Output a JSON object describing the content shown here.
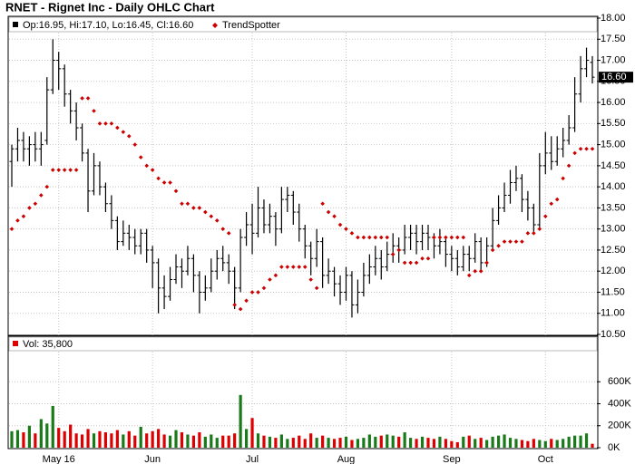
{
  "chart_data": [
    {
      "type": "ohlc",
      "title": "RNET - Rignet Inc - Daily OHLC Chart",
      "legend_label": "Op:16.95, Hi:17.10, Lo:16.45, Cl:16.60",
      "last_price_label": "16.60",
      "color": "#000000",
      "grid": true,
      "categories": [
        null,
        null,
        null,
        null,
        null,
        null,
        null,
        null,
        "May 16",
        null,
        null,
        null,
        null,
        null,
        null,
        null,
        null,
        null,
        null,
        null,
        null,
        null,
        null,
        null,
        "Jun",
        null,
        null,
        null,
        null,
        null,
        null,
        null,
        null,
        null,
        null,
        null,
        null,
        null,
        null,
        null,
        null,
        "Jul",
        null,
        null,
        null,
        null,
        null,
        null,
        null,
        null,
        null,
        null,
        null,
        null,
        null,
        null,
        null,
        "Aug",
        null,
        null,
        null,
        null,
        null,
        null,
        null,
        null,
        null,
        null,
        null,
        null,
        null,
        null,
        null,
        null,
        null,
        "Sep",
        null,
        null,
        null,
        null,
        null,
        null,
        null,
        null,
        null,
        null,
        null,
        null,
        null,
        null,
        null,
        "Oct",
        null,
        null,
        null,
        null,
        null,
        null,
        null,
        null
      ],
      "open": [
        14.6,
        14.9,
        15.1,
        14.9,
        15.0,
        14.9,
        15.1,
        16.3,
        17.0,
        16.8,
        16.2,
        15.8,
        15.4,
        14.8,
        13.9,
        14.5,
        14.0,
        13.6,
        13.2,
        12.7,
        12.9,
        12.8,
        12.6,
        12.9,
        12.5,
        12.2,
        11.6,
        11.4,
        11.8,
        12.1,
        12.0,
        12.3,
        11.9,
        11.5,
        11.6,
        12.0,
        12.3,
        12.2,
        12.0,
        11.6,
        12.8,
        13.1,
        12.9,
        13.5,
        13.1,
        13.3,
        13.0,
        13.7,
        13.8,
        13.4,
        13.0,
        12.6,
        12.3,
        12.7,
        11.9,
        12.0,
        11.7,
        11.5,
        11.9,
        11.2,
        11.5,
        11.9,
        12.1,
        12.3,
        12.1,
        12.4,
        12.6,
        12.5,
        12.8,
        12.9,
        12.7,
        12.9,
        12.8,
        12.6,
        12.7,
        12.4,
        12.3,
        12.1,
        12.4,
        12.3,
        12.7,
        12.2,
        12.6,
        13.2,
        13.5,
        13.8,
        14.1,
        14.2,
        13.7,
        13.5,
        13.1,
        14.5,
        14.8,
        14.6,
        14.9,
        15.1,
        15.4,
        16.2,
        16.8,
        16.95
      ],
      "high": [
        15.0,
        15.4,
        15.3,
        15.2,
        15.3,
        15.3,
        16.6,
        17.5,
        17.2,
        16.9,
        16.3,
        16.0,
        15.5,
        14.9,
        14.8,
        14.6,
        14.1,
        13.8,
        13.3,
        13.2,
        13.1,
        13.0,
        13.0,
        13.0,
        12.6,
        12.3,
        11.9,
        12.1,
        12.4,
        12.3,
        12.6,
        12.4,
        12.0,
        11.9,
        12.3,
        12.5,
        12.6,
        12.4,
        12.1,
        13.0,
        13.4,
        13.6,
        14.0,
        13.7,
        13.6,
        13.4,
        14.0,
        14.0,
        13.9,
        13.6,
        13.1,
        12.7,
        13.0,
        12.8,
        12.3,
        12.1,
        11.9,
        12.1,
        12.0,
        11.8,
        12.2,
        12.4,
        12.6,
        12.5,
        12.7,
        12.9,
        12.8,
        13.1,
        13.1,
        13.1,
        13.1,
        13.1,
        12.9,
        13.0,
        12.8,
        12.6,
        12.5,
        12.6,
        12.6,
        12.9,
        12.8,
        12.8,
        13.5,
        13.8,
        14.1,
        14.4,
        14.5,
        14.3,
        13.9,
        13.6,
        14.8,
        15.3,
        15.2,
        15.2,
        15.4,
        15.7,
        16.6,
        17.1,
        17.3,
        17.1
      ],
      "low": [
        14.0,
        14.6,
        14.6,
        14.5,
        14.6,
        14.5,
        15.0,
        16.2,
        16.3,
        15.9,
        15.5,
        15.1,
        14.6,
        13.4,
        13.8,
        13.8,
        13.4,
        13.0,
        12.5,
        12.6,
        12.5,
        12.4,
        12.4,
        12.2,
        11.6,
        11.0,
        11.1,
        11.3,
        11.7,
        11.6,
        11.9,
        11.5,
        11.0,
        11.3,
        11.5,
        11.8,
        12.0,
        11.7,
        11.1,
        11.5,
        12.6,
        12.4,
        12.8,
        12.9,
        12.9,
        12.6,
        12.9,
        13.4,
        13.1,
        12.7,
        12.3,
        11.9,
        12.1,
        11.6,
        11.7,
        11.4,
        11.2,
        11.3,
        10.9,
        11.0,
        11.4,
        11.7,
        11.9,
        11.8,
        12.0,
        12.2,
        12.2,
        12.4,
        12.5,
        12.4,
        12.5,
        12.5,
        12.3,
        12.4,
        12.1,
        12.0,
        11.9,
        12.0,
        12.0,
        12.2,
        12.0,
        12.1,
        12.5,
        13.1,
        13.4,
        13.6,
        13.9,
        13.4,
        13.2,
        12.9,
        13.0,
        14.3,
        14.4,
        14.5,
        14.7,
        15.0,
        15.3,
        16.0,
        16.6,
        16.45
      ],
      "close": [
        14.9,
        15.1,
        14.9,
        15.0,
        14.9,
        15.0,
        16.3,
        17.0,
        16.8,
        16.2,
        15.8,
        15.4,
        14.8,
        13.9,
        14.5,
        14.0,
        13.6,
        13.2,
        12.7,
        12.9,
        12.8,
        12.6,
        12.9,
        12.5,
        12.2,
        11.6,
        11.4,
        11.8,
        12.1,
        12.0,
        12.3,
        11.9,
        11.5,
        11.6,
        12.0,
        12.3,
        12.2,
        12.0,
        11.6,
        12.8,
        13.1,
        12.9,
        13.5,
        13.1,
        13.3,
        13.0,
        13.7,
        13.8,
        13.4,
        13.0,
        12.6,
        12.3,
        12.7,
        11.9,
        12.0,
        11.7,
        11.5,
        11.9,
        11.2,
        11.5,
        11.9,
        12.1,
        12.3,
        12.1,
        12.4,
        12.6,
        12.5,
        12.8,
        12.9,
        12.7,
        12.9,
        12.8,
        12.6,
        12.7,
        12.4,
        12.3,
        12.1,
        12.4,
        12.3,
        12.7,
        12.2,
        12.6,
        13.2,
        13.5,
        13.8,
        14.1,
        14.2,
        13.7,
        13.5,
        13.1,
        14.5,
        14.8,
        14.6,
        14.9,
        15.1,
        15.4,
        16.2,
        16.8,
        17.0,
        16.6
      ],
      "series": [
        {
          "name": "TrendSpotter",
          "color": "#cc0000",
          "values": [
            13.0,
            13.2,
            13.3,
            13.5,
            13.6,
            13.8,
            14.0,
            14.4,
            14.4,
            14.4,
            14.4,
            14.4,
            16.1,
            16.1,
            15.8,
            15.5,
            15.5,
            15.5,
            15.4,
            15.3,
            15.2,
            15.0,
            14.7,
            14.5,
            14.4,
            14.2,
            14.1,
            14.1,
            13.9,
            13.6,
            13.6,
            13.5,
            13.5,
            13.4,
            13.3,
            13.2,
            13.0,
            12.9,
            11.2,
            11.1,
            11.3,
            11.5,
            11.5,
            11.6,
            11.8,
            11.9,
            12.1,
            12.1,
            12.1,
            12.1,
            12.1,
            11.8,
            11.6,
            13.6,
            13.4,
            13.3,
            13.1,
            13.0,
            12.9,
            12.8,
            12.8,
            12.8,
            12.8,
            12.8,
            12.8,
            12.4,
            12.5,
            12.2,
            12.2,
            12.2,
            12.3,
            12.3,
            12.8,
            12.8,
            12.8,
            12.8,
            12.8,
            12.8,
            11.9,
            12.0,
            12.0,
            12.2,
            12.5,
            12.6,
            12.7,
            12.7,
            12.7,
            12.7,
            12.9,
            12.9,
            13.0,
            13.3,
            13.6,
            13.7,
            14.2,
            14.5,
            14.8,
            14.9,
            14.9,
            14.9
          ]
        }
      ],
      "ylim": [
        10.5,
        18.0
      ],
      "yticks": [
        {
          "value": 10.5,
          "label": "10.50"
        },
        {
          "value": 11,
          "label": "11.00"
        },
        {
          "value": 11.5,
          "label": "11.50"
        },
        {
          "value": 12,
          "label": "12.00"
        },
        {
          "value": 12.5,
          "label": "12.50"
        },
        {
          "value": 13,
          "label": "13.00"
        },
        {
          "value": 13.5,
          "label": "13.50"
        },
        {
          "value": 14,
          "label": "14.00"
        },
        {
          "value": 14.5,
          "label": "14.50"
        },
        {
          "value": 15,
          "label": "15.00"
        },
        {
          "value": 15.5,
          "label": "15.50"
        },
        {
          "value": 16,
          "label": "16.00"
        },
        {
          "value": 16.5,
          "label": "16.50"
        },
        {
          "value": 17,
          "label": "17.00"
        },
        {
          "value": 17.5,
          "label": "17.50"
        },
        {
          "value": 18,
          "label": "18.00"
        }
      ]
    },
    {
      "type": "bar",
      "legend_label": "Vol: 35,800",
      "up_color": "#1a7a1a",
      "down_color": "#dd0000",
      "grid": true,
      "values": [
        150000,
        160000,
        140000,
        200000,
        130000,
        260000,
        220000,
        380000,
        180000,
        150000,
        210000,
        130000,
        120000,
        170000,
        130000,
        150000,
        140000,
        130000,
        160000,
        120000,
        150000,
        110000,
        190000,
        130000,
        150000,
        170000,
        120000,
        110000,
        160000,
        140000,
        120000,
        110000,
        140000,
        100000,
        120000,
        90000,
        110000,
        110000,
        130000,
        480000,
        170000,
        270000,
        130000,
        110000,
        100000,
        90000,
        120000,
        80000,
        90000,
        110000,
        80000,
        130000,
        90000,
        110000,
        90000,
        80000,
        90000,
        100000,
        70000,
        80000,
        90000,
        120000,
        100000,
        110000,
        120000,
        110000,
        100000,
        140000,
        90000,
        80000,
        100000,
        90000,
        80000,
        100000,
        80000,
        60000,
        50000,
        100000,
        110000,
        80000,
        90000,
        70000,
        100000,
        110000,
        120000,
        90000,
        80000,
        70000,
        60000,
        80000,
        70000,
        60000,
        80000,
        70000,
        80000,
        100000,
        110000,
        110000,
        130000,
        35800
      ],
      "ylim": [
        0,
        800000
      ],
      "yticks": [
        {
          "value": 0,
          "label": "0K"
        },
        {
          "value": 200000,
          "label": "200K"
        },
        {
          "value": 400000,
          "label": "400K"
        },
        {
          "value": 600000,
          "label": "600K"
        }
      ]
    }
  ]
}
